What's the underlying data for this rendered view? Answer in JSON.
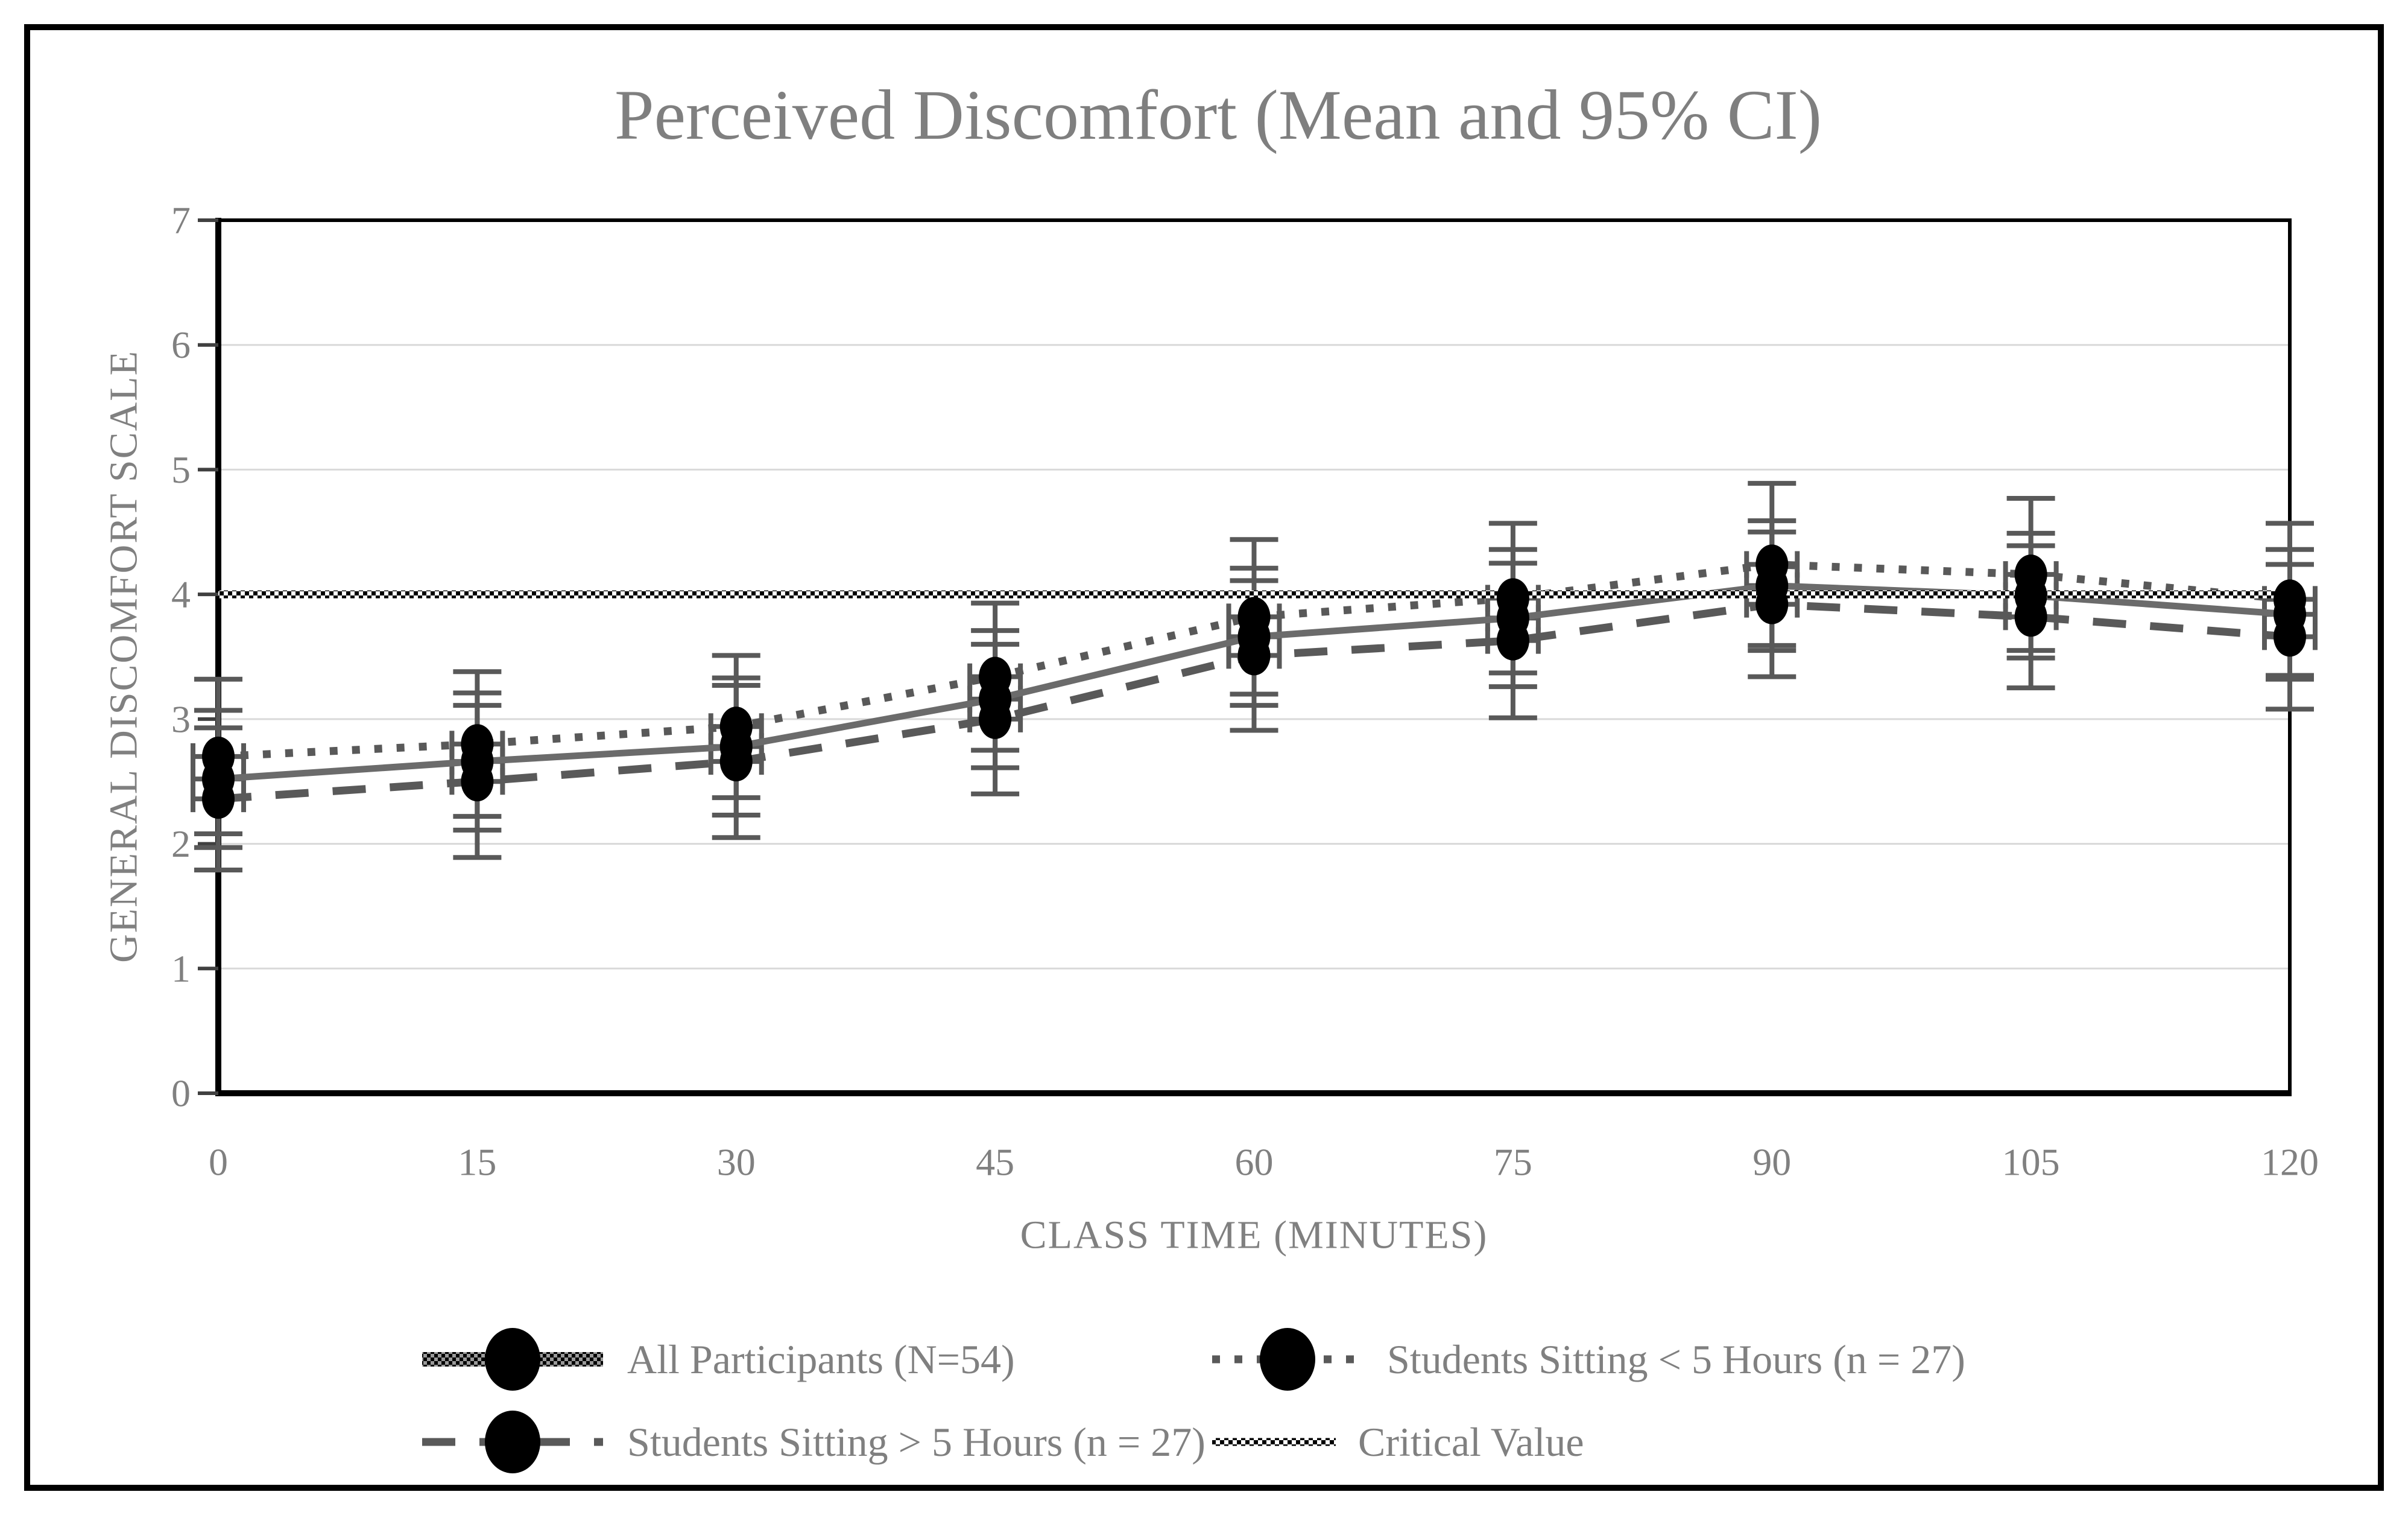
{
  "chart_data": {
    "type": "line",
    "title": "Perceived Discomfort (Mean and 95% CI)",
    "xlabel": "CLASS TIME (MINUTES)",
    "ylabel": "GENERAL DISCOMFORT SCALE",
    "categories": [
      0,
      15,
      30,
      45,
      60,
      75,
      90,
      105,
      120
    ],
    "ylim": [
      0,
      7
    ],
    "ytick_interval": 1,
    "yticks": [
      0,
      1,
      2,
      3,
      4,
      5,
      6,
      7
    ],
    "grid": "horizontal-major",
    "error_bars": "95% CI whiskers with end caps on every point",
    "legend_position": "bottom-two-rows",
    "series": [
      {
        "name": "All Participants (N=54)",
        "style": "solid",
        "legend_swatch": "checker-thick-line-with-marker",
        "marker": "black-ellipse",
        "values": [
          2.52,
          2.66,
          2.78,
          3.16,
          3.66,
          3.81,
          4.07,
          3.99,
          3.84
        ],
        "ci": [
          0.55,
          0.55,
          0.55,
          0.55,
          0.55,
          0.55,
          0.52,
          0.5,
          0.52
        ]
      },
      {
        "name": "Students Sitting < 5 Hours (n = 27)",
        "style": "dotted",
        "legend_swatch": "dotted-line-with-marker",
        "marker": "black-ellipse",
        "values": [
          2.7,
          2.8,
          2.94,
          3.34,
          3.82,
          3.97,
          4.24,
          4.16,
          3.96
        ],
        "ci": [
          0.62,
          0.58,
          0.57,
          0.59,
          0.62,
          0.6,
          0.65,
          0.61,
          0.61
        ]
      },
      {
        "name": "Students Sitting > 5 Hours (n = 27)",
        "style": "dashed",
        "legend_swatch": "dashed-line-with-marker",
        "marker": "black-ellipse",
        "values": [
          2.36,
          2.5,
          2.66,
          3.0,
          3.51,
          3.63,
          3.92,
          3.82,
          3.66
        ],
        "ci": [
          0.57,
          0.61,
          0.61,
          0.6,
          0.6,
          0.62,
          0.58,
          0.57,
          0.58
        ]
      },
      {
        "name": "Critical Value",
        "style": "checker-pattern-horizontal-line",
        "legend_swatch": "checker-line",
        "marker": "none",
        "constant_value": 4.0
      }
    ],
    "legend_rows": [
      [
        "All Participants (N=54)",
        "Students Sitting < 5 Hours (n = 27)"
      ],
      [
        "Students Sitting > 5 Hours (n = 27)",
        "Critical Value"
      ]
    ],
    "colors": {
      "title_text": "#7f7f7f",
      "axis_text": "#808080",
      "gridline": "#d9d9d9",
      "axis_line": "#000000",
      "plot_border": "#000000",
      "outer_frame": "#000000",
      "solid_series_line": "#6b6b6b",
      "dotted_series_line": "#595959",
      "dashed_series_line": "#595959",
      "whisker": "#595959",
      "marker_fill": "#000000",
      "critical_pattern": "#000000 on #ffffff checkerboard",
      "background": "#ffffff"
    }
  }
}
